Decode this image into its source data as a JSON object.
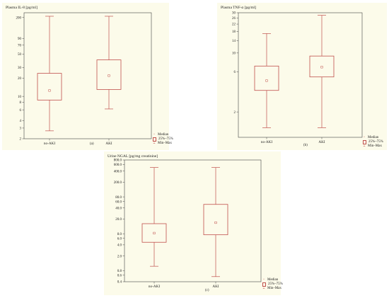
{
  "legend": {
    "median": "Median",
    "iqr": "25%–75%",
    "range": "Min–Max",
    "colors": {
      "box": "#c0504d",
      "axis": "#444444",
      "panel_bg": "#fcfbea"
    }
  },
  "chart_data": [
    {
      "id": "a",
      "type": "box",
      "panel_label": "(a)",
      "ylabel": "Plasma IL-8 [pg/ml]",
      "xlabel": "",
      "yscale": "log",
      "ylim": [
        2,
        240
      ],
      "yticks": [
        "2",
        "3",
        "4",
        "6",
        "8",
        "10",
        "20",
        "30",
        "50",
        "70",
        "90",
        "200"
      ],
      "categories": [
        "no-AKI",
        "AKI"
      ],
      "series": [
        {
          "category": "no-AKI",
          "min": 2.7,
          "q1": 8.7,
          "median": 12.5,
          "q3": 24,
          "max": 210
        },
        {
          "category": "AKI",
          "min": 6.2,
          "q1": 13,
          "median": 22,
          "q3": 40,
          "max": 210
        }
      ]
    },
    {
      "id": "b",
      "type": "box",
      "panel_label": "(b)",
      "ylabel": "Plasma TNF-α [pg/ml]",
      "xlabel": "",
      "yscale": "log",
      "ylim": [
        1,
        30
      ],
      "yticks": [
        "2",
        "6",
        "10",
        "14",
        "18",
        "22",
        "26",
        "30"
      ],
      "categories": [
        "no-AKI",
        "AKI"
      ],
      "series": [
        {
          "category": "no-AKI",
          "min": 1.3,
          "q1": 3.6,
          "median": 4.7,
          "q3": 7,
          "max": 17
        },
        {
          "category": "AKI",
          "min": 1.3,
          "q1": 5.2,
          "median": 6.8,
          "q3": 9.2,
          "max": 28
        }
      ]
    },
    {
      "id": "c",
      "type": "box",
      "panel_label": "(c)",
      "ylabel": "Urine NGAL [pg/mg creatinine]",
      "xlabel": "",
      "yscale": "log",
      "ylim": [
        0.4,
        800
      ],
      "yticks": [
        "0.4",
        "0.6",
        "0.8",
        "2.0",
        "4.0",
        "6.0",
        "8.0",
        "20.0",
        "40.0",
        "60.0",
        "80.0",
        "200.0",
        "400.0",
        "600.0",
        "800.0"
      ],
      "categories": [
        "no-AKI",
        "AKI"
      ],
      "series": [
        {
          "category": "no-AKI",
          "min": 1.05,
          "q1": 4.7,
          "median": 8.3,
          "q3": 15,
          "max": 500
        },
        {
          "category": "AKI",
          "min": 0.55,
          "q1": 7.5,
          "median": 16,
          "q3": 50,
          "max": 500
        }
      ]
    }
  ]
}
